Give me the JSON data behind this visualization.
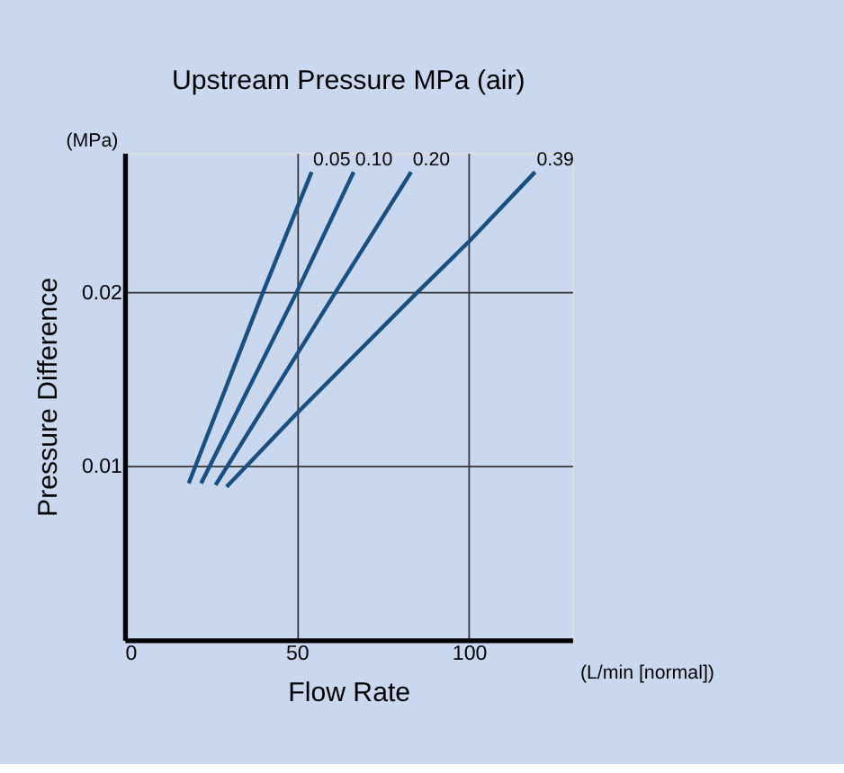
{
  "chart_data": {
    "type": "line",
    "title": "Upstream Pressure MPa (air)",
    "xlabel": "Flow Rate",
    "ylabel": "Pressure Difference",
    "annotations": [
      "(MPa)",
      "(L/min [normal])"
    ],
    "series": [
      {
        "name": "0.05",
        "color": "#1b4f80",
        "x": [
          18.6,
          40.2,
          54.3
        ],
        "values": [
          0.009,
          0.02,
          0.0269
        ]
      },
      {
        "name": "0.10",
        "color": "#1b4f80",
        "x": [
          22.2,
          50,
          66.5
        ],
        "values": [
          0.009,
          0.02,
          0.0269
        ]
      },
      {
        "name": "0.20",
        "color": "#1b4f80",
        "x": [
          26.4,
          61.3,
          83.2
        ],
        "values": [
          0.0089,
          0.02,
          0.0269
        ]
      },
      {
        "name": "0.39",
        "color": "#1b4f80",
        "x": [
          29.6,
          49.9,
          85.1,
          100,
          119.2
        ],
        "values": [
          0.0088,
          0.013,
          0.02,
          0.0229,
          0.0269
        ]
      }
    ],
    "xlim": [
      0,
      130
    ],
    "ylim": [
      0,
      0.028
    ],
    "xticks": [
      0,
      50,
      100
    ],
    "yticks": [
      {
        "value": 0,
        "label": null
      },
      0.01,
      0.02
    ],
    "grid": true,
    "legend": false,
    "marker": "none",
    "line_style": "solid"
  }
}
